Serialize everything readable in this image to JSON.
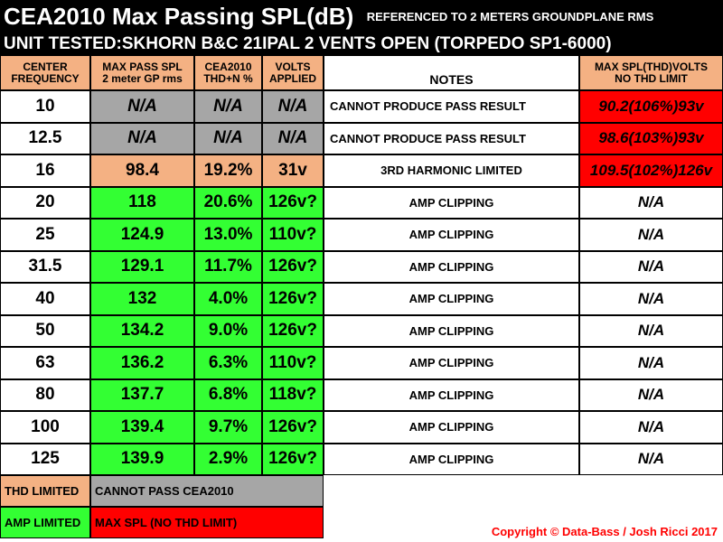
{
  "title": "CEA2010 Max Passing SPL(dB)",
  "subtitle": "REFERENCED TO 2 METERS GROUNDPLANE RMS",
  "unit_line": "UNIT TESTED:SKHORN B&C 21IPAL 2 VENTS OPEN (TORPEDO SP1-6000)",
  "colors": {
    "thd_limited": "#f4b183",
    "amp_limited": "#33ff33",
    "cannot_pass": "#a6a6a6",
    "max_spl": "#ff0000"
  },
  "headers": {
    "freq": [
      "CENTER",
      "FREQUENCY"
    ],
    "spl": [
      "MAX PASS SPL",
      "2 meter GP rms"
    ],
    "thd": [
      "CEA2010",
      "THD+N %"
    ],
    "volts": [
      "VOLTS",
      "APPLIED"
    ],
    "notes": [
      "NOTES"
    ],
    "maxspl": [
      "MAX SPL(THD)VOLTS",
      "NO THD LIMIT"
    ]
  },
  "chart_data": {
    "type": "table",
    "title": "CEA2010 Max Passing SPL(dB)",
    "columns": [
      "CENTER FREQUENCY",
      "MAX PASS SPL 2 meter GP rms",
      "CEA2010 THD+N %",
      "VOLTS APPLIED",
      "NOTES",
      "MAX SPL(THD)VOLTS NO THD LIMIT"
    ],
    "rows": [
      {
        "freq": "10",
        "spl": "N/A",
        "thd": "N/A",
        "volts": "N/A",
        "note": "CANNOT PRODUCE PASS RESULT",
        "maxspl": "90.2(106%)93v",
        "status": "cannot_pass"
      },
      {
        "freq": "12.5",
        "spl": "N/A",
        "thd": "N/A",
        "volts": "N/A",
        "note": "CANNOT PRODUCE PASS RESULT",
        "maxspl": "98.6(103%)93v",
        "status": "cannot_pass"
      },
      {
        "freq": "16",
        "spl": "98.4",
        "thd": "19.2%",
        "volts": "31v",
        "note": "3RD HARMONIC LIMITED",
        "maxspl": "109.5(102%)126v",
        "status": "thd_limited"
      },
      {
        "freq": "20",
        "spl": "118",
        "thd": "20.6%",
        "volts": "126v?",
        "note": "AMP CLIPPING",
        "maxspl": "N/A",
        "status": "amp_limited"
      },
      {
        "freq": "25",
        "spl": "124.9",
        "thd": "13.0%",
        "volts": "110v?",
        "note": "AMP CLIPPING",
        "maxspl": "N/A",
        "status": "amp_limited"
      },
      {
        "freq": "31.5",
        "spl": "129.1",
        "thd": "11.7%",
        "volts": "126v?",
        "note": "AMP CLIPPING",
        "maxspl": "N/A",
        "status": "amp_limited"
      },
      {
        "freq": "40",
        "spl": "132",
        "thd": "4.0%",
        "volts": "126v?",
        "note": "AMP CLIPPING",
        "maxspl": "N/A",
        "status": "amp_limited"
      },
      {
        "freq": "50",
        "spl": "134.2",
        "thd": "9.0%",
        "volts": "126v?",
        "note": "AMP CLIPPING",
        "maxspl": "N/A",
        "status": "amp_limited"
      },
      {
        "freq": "63",
        "spl": "136.2",
        "thd": "6.3%",
        "volts": "110v?",
        "note": "AMP CLIPPING",
        "maxspl": "N/A",
        "status": "amp_limited"
      },
      {
        "freq": "80",
        "spl": "137.7",
        "thd": "6.8%",
        "volts": "118v?",
        "note": "AMP CLIPPING",
        "maxspl": "N/A",
        "status": "amp_limited"
      },
      {
        "freq": "100",
        "spl": "139.4",
        "thd": "9.7%",
        "volts": "126v?",
        "note": "AMP CLIPPING",
        "maxspl": "N/A",
        "status": "amp_limited"
      },
      {
        "freq": "125",
        "spl": "139.9",
        "thd": "2.9%",
        "volts": "126v?",
        "note": "AMP CLIPPING",
        "maxspl": "N/A",
        "status": "amp_limited"
      }
    ]
  },
  "legend": {
    "thd_limited": "THD LIMITED",
    "cannot_pass": "CANNOT PASS CEA2010",
    "amp_limited": "AMP LIMITED",
    "max_spl": "MAX SPL (NO THD LIMIT)"
  },
  "copyright": "Copyright © Data-Bass / Josh Ricci 2017"
}
